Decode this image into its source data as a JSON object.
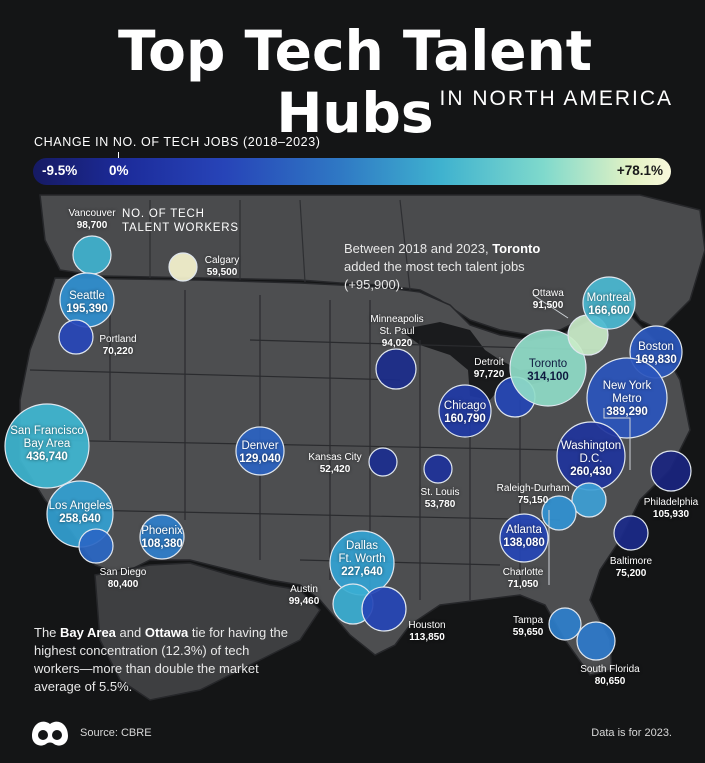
{
  "header": {
    "title": "Top Tech Talent Hubs",
    "subtitle": "IN NORTH AMERICA"
  },
  "legend": {
    "title": "CHANGE IN NO. OF TECH JOBS (2018–2023)",
    "min_label": "-9.5%",
    "zero_label": "0%",
    "max_label": "+78.1%",
    "colors": [
      "#161a63",
      "#2744b8",
      "#3fb2cf",
      "#f8f8dc"
    ]
  },
  "size_legend_label": "NO. OF TECH\nTALENT WORKERS",
  "annotations": {
    "toronto_pre": "Between 2018 and 2023,",
    "toronto_bold": "Toronto",
    "toronto_post": "added the most tech talent jobs (+95,900).",
    "bay_pre": "The",
    "bay_bold1": "Bay Area",
    "bay_and": "and",
    "bay_bold2": "Ottawa",
    "bay_post": "tie for having the highest concentration (12.3%) of tech workers—more than double the market average of 5.5%."
  },
  "footer": {
    "source": "Source: CBRE",
    "data_note": "Data is for 2023."
  },
  "cities": [
    {
      "name": "Vancouver",
      "value": "98,700",
      "color": "#3fb2cf"
    },
    {
      "name": "Calgary",
      "value": "59,500",
      "color": "#f6f4cf"
    },
    {
      "name": "Seattle",
      "value": "195,390",
      "color": "#2f8fd0"
    },
    {
      "name": "Portland",
      "value": "70,220",
      "color": "#2747b8"
    },
    {
      "name": "San Francisco Bay Area",
      "value": "436,740",
      "color": "#3fb7d3"
    },
    {
      "name": "Los Angeles",
      "value": "258,640",
      "color": "#33a1d3"
    },
    {
      "name": "San Diego",
      "value": "80,400",
      "color": "#2a67c4"
    },
    {
      "name": "Phoenix",
      "value": "108,380",
      "color": "#2f7fcc"
    },
    {
      "name": "Denver",
      "value": "129,040",
      "color": "#2b63c2"
    },
    {
      "name": "Kansas City",
      "value": "52,420",
      "color": "#1b2e8f"
    },
    {
      "name": "St. Louis",
      "value": "53,780",
      "color": "#1e329a"
    },
    {
      "name": "Minneapolis St. Paul",
      "value": "94,020",
      "color": "#1b2c8c"
    },
    {
      "name": "Dallas Ft. Worth",
      "value": "227,640",
      "color": "#33a3d4"
    },
    {
      "name": "Austin",
      "value": "99,460",
      "color": "#3aaed2"
    },
    {
      "name": "Houston",
      "value": "113,850",
      "color": "#2545b6"
    },
    {
      "name": "Chicago",
      "value": "160,790",
      "color": "#1f3aa6"
    },
    {
      "name": "Detroit",
      "value": "97,720",
      "color": "#2445b5"
    },
    {
      "name": "Toronto",
      "value": "314,100",
      "color": "#8fdcc8"
    },
    {
      "name": "Ottawa",
      "value": "91,500",
      "color": "#c9ecc8"
    },
    {
      "name": "Montreal",
      "value": "166,600",
      "color": "#4ab9d1"
    },
    {
      "name": "Boston",
      "value": "169,830",
      "color": "#2a58bf"
    },
    {
      "name": "New York Metro",
      "value": "389,290",
      "color": "#2a55bd"
    },
    {
      "name": "Washington D.C.",
      "value": "260,430",
      "color": "#1f349c"
    },
    {
      "name": "Philadelphia",
      "value": "105,930",
      "color": "#1a2580"
    },
    {
      "name": "Baltimore",
      "value": "75,200",
      "color": "#1b2a8a"
    },
    {
      "name": "Raleigh-Durham",
      "value": "75,150",
      "color": "#3d9fd6"
    },
    {
      "name": "Atlanta",
      "value": "138,080",
      "color": "#2545b6"
    },
    {
      "name": "Charlotte",
      "value": "71,050",
      "color": "#3192d4"
    },
    {
      "name": "Tampa",
      "value": "59,650",
      "color": "#2e7fcc"
    },
    {
      "name": "South Florida",
      "value": "80,650",
      "color": "#2e79cb"
    }
  ]
}
